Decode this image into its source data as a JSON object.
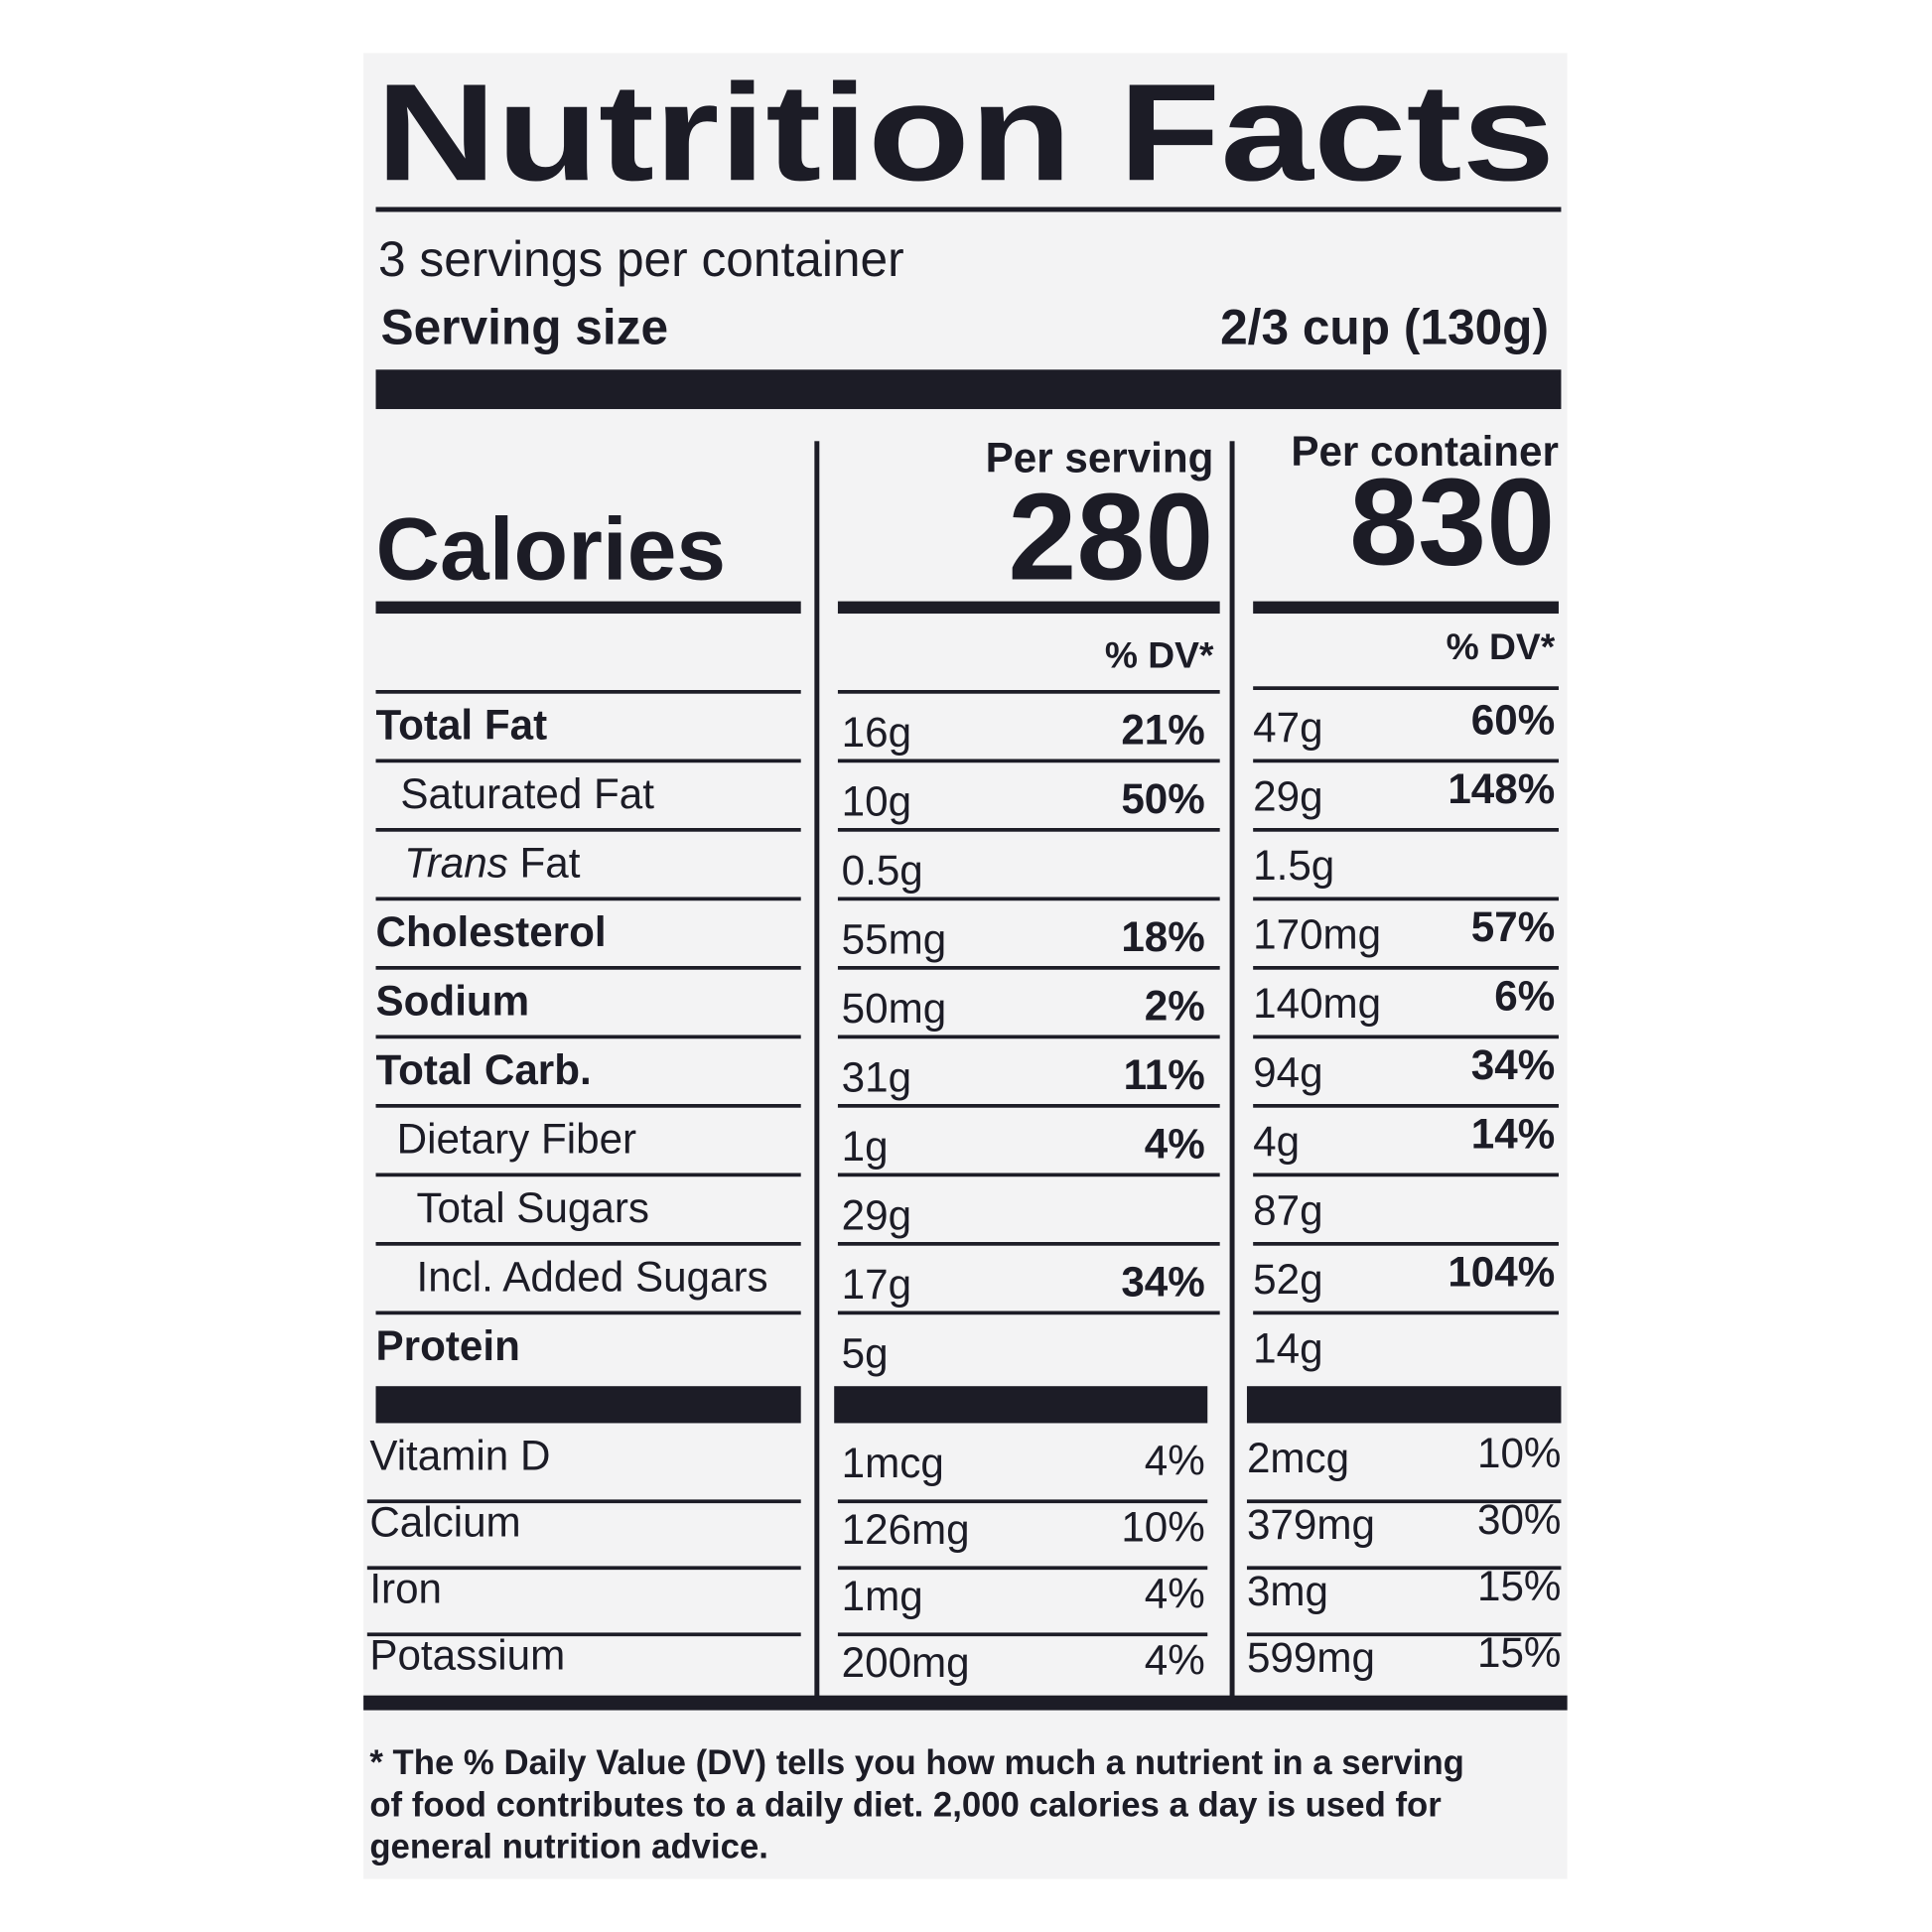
{
  "title": "Nutrition Facts",
  "servings_per_container": "3 servings per container",
  "serving_size": {
    "label": "Serving size",
    "value": "2/3 cup (130g)"
  },
  "columns": {
    "per_serving": "Per serving",
    "per_container": "Per container"
  },
  "calories": {
    "label": "Calories",
    "per_serving": "280",
    "per_container": "830"
  },
  "dv_header": {
    "per_serving": "% DV*",
    "per_container": "% DV*"
  },
  "nutrients": [
    {
      "label": "Total Fat",
      "serving_amount": "16g",
      "serving_dv": "21%",
      "container_amount": "47g",
      "container_dv": "60%"
    },
    {
      "label": "Saturated Fat",
      "serving_amount": "10g",
      "serving_dv": "50%",
      "container_amount": "29g",
      "container_dv": "148%"
    },
    {
      "label_italic": "Trans",
      "label": "Fat",
      "serving_amount": "0.5g",
      "container_amount": "1.5g"
    },
    {
      "label": "Cholesterol",
      "serving_amount": "55mg",
      "serving_dv": "18%",
      "container_amount": "170mg",
      "container_dv": "57%"
    },
    {
      "label": "Sodium",
      "serving_amount": "50mg",
      "serving_dv": "2%",
      "container_amount": "140mg",
      "container_dv": "6%"
    },
    {
      "label": "Total Carb.",
      "serving_amount": "31g",
      "serving_dv": "11%",
      "container_amount": "94g",
      "container_dv": "34%"
    },
    {
      "label": "Dietary Fiber",
      "serving_amount": "1g",
      "serving_dv": "4%",
      "container_amount": "4g",
      "container_dv": "14%"
    },
    {
      "label": "Total Sugars",
      "serving_amount": "29g",
      "container_amount": "87g"
    },
    {
      "label": "Incl. Added Sugars",
      "serving_amount": "17g",
      "serving_dv": "34%",
      "container_amount": "52g",
      "container_dv": "104%"
    },
    {
      "label": "Protein",
      "serving_amount": "5g",
      "container_amount": "14g"
    }
  ],
  "vitamins": [
    {
      "label": "Vitamin D",
      "serving_amount": "1mcg",
      "serving_dv": "4%",
      "container_amount": "2mcg",
      "container_dv": "10%"
    },
    {
      "label": "Calcium",
      "serving_amount": "126mg",
      "serving_dv": "10%",
      "container_amount": "379mg",
      "container_dv": "30%"
    },
    {
      "label": "Iron",
      "serving_amount": "1mg",
      "serving_dv": "4%",
      "container_amount": "3mg",
      "container_dv": "15%"
    },
    {
      "label": "Potassium",
      "serving_amount": "200mg",
      "serving_dv": "4%",
      "container_amount": "599mg",
      "container_dv": "15%"
    }
  ],
  "footnote": [
    "* The % Daily Value (DV) tells you how much a nutrient in a serving",
    "of food contributes to a daily diet. 2,000 calories a day is used for",
    "general nutrition advice."
  ]
}
